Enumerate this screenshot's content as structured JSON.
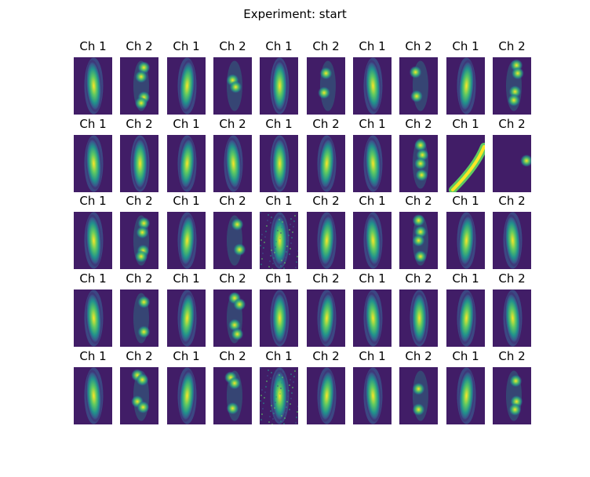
{
  "figure": {
    "title": "Experiment: start"
  },
  "colormap": [
    "#440154",
    "#3b528b",
    "#21918c",
    "#5ec962",
    "#fde725"
  ],
  "rows": [
    {
      "labels": [
        "Ch 1",
        "Ch 2",
        "Ch 1",
        "Ch 2",
        "Ch 1",
        "Ch 2",
        "Ch 1",
        "Ch 2",
        "Ch 1",
        "Ch 2"
      ],
      "cells": [
        {
          "shape": "rod",
          "blobs": []
        },
        {
          "shape": "spots",
          "blobs": [
            [
              0.62,
              0.18
            ],
            [
              0.55,
              0.34
            ],
            [
              0.62,
              0.7
            ],
            [
              0.55,
              0.8
            ]
          ]
        },
        {
          "shape": "rod",
          "blobs": []
        },
        {
          "shape": "spots",
          "blobs": [
            [
              0.5,
              0.4
            ],
            [
              0.58,
              0.52
            ]
          ]
        },
        {
          "shape": "rod",
          "blobs": []
        },
        {
          "shape": "spots",
          "blobs": [
            [
              0.5,
              0.28
            ],
            [
              0.45,
              0.62
            ]
          ]
        },
        {
          "shape": "rod",
          "blobs": []
        },
        {
          "shape": "spots",
          "blobs": [
            [
              0.42,
              0.26
            ],
            [
              0.45,
              0.68
            ]
          ]
        },
        {
          "shape": "rod",
          "blobs": []
        },
        {
          "shape": "spots",
          "blobs": [
            [
              0.62,
              0.14
            ],
            [
              0.65,
              0.28
            ],
            [
              0.58,
              0.6
            ],
            [
              0.55,
              0.75
            ]
          ]
        }
      ]
    },
    {
      "labels": [
        "Ch 1",
        "Ch 2",
        "Ch 1",
        "Ch 2",
        "Ch 1",
        "Ch 2",
        "Ch 1",
        "Ch 2",
        "Ch 1",
        "Ch 2"
      ],
      "cells": [
        {
          "shape": "rod",
          "blobs": []
        },
        {
          "shape": "rod",
          "blobs": []
        },
        {
          "shape": "rod",
          "blobs": []
        },
        {
          "shape": "rod",
          "blobs": []
        },
        {
          "shape": "rod",
          "blobs": []
        },
        {
          "shape": "rod",
          "blobs": []
        },
        {
          "shape": "rod",
          "blobs": []
        },
        {
          "shape": "spots",
          "blobs": [
            [
              0.55,
              0.18
            ],
            [
              0.6,
              0.35
            ],
            [
              0.55,
              0.5
            ],
            [
              0.58,
              0.7
            ]
          ]
        },
        {
          "shape": "arc",
          "blobs": []
        },
        {
          "shape": "edge",
          "blobs": [
            [
              0.88,
              0.45
            ]
          ]
        }
      ]
    },
    {
      "labels": [
        "Ch 1",
        "Ch 2",
        "Ch 1",
        "Ch 2",
        "Ch 1",
        "Ch 2",
        "Ch 1",
        "Ch 2",
        "Ch 1",
        "Ch 2"
      ],
      "cells": [
        {
          "shape": "rod",
          "blobs": []
        },
        {
          "shape": "spots",
          "blobs": [
            [
              0.62,
              0.2
            ],
            [
              0.58,
              0.36
            ],
            [
              0.6,
              0.68
            ],
            [
              0.55,
              0.78
            ]
          ]
        },
        {
          "shape": "rod",
          "blobs": []
        },
        {
          "shape": "spots",
          "blobs": [
            [
              0.62,
              0.22
            ],
            [
              0.68,
              0.66
            ]
          ]
        },
        {
          "shape": "noisy",
          "blobs": []
        },
        {
          "shape": "rod",
          "blobs": []
        },
        {
          "shape": "rod",
          "blobs": []
        },
        {
          "shape": "spots",
          "blobs": [
            [
              0.5,
              0.15
            ],
            [
              0.55,
              0.35
            ],
            [
              0.5,
              0.5
            ],
            [
              0.55,
              0.78
            ]
          ]
        },
        {
          "shape": "rod",
          "blobs": []
        },
        {
          "shape": "rod",
          "blobs": []
        }
      ]
    },
    {
      "labels": [
        "Ch 1",
        "Ch 2",
        "Ch 1",
        "Ch 2",
        "Ch 1",
        "Ch 2",
        "Ch 1",
        "Ch 2",
        "Ch 1",
        "Ch 2"
      ],
      "cells": [
        {
          "shape": "rod",
          "blobs": []
        },
        {
          "shape": "spots",
          "blobs": [
            [
              0.62,
              0.22
            ],
            [
              0.62,
              0.74
            ]
          ]
        },
        {
          "shape": "rod",
          "blobs": []
        },
        {
          "shape": "spots",
          "blobs": [
            [
              0.55,
              0.15
            ],
            [
              0.68,
              0.26
            ],
            [
              0.55,
              0.62
            ],
            [
              0.62,
              0.78
            ]
          ]
        },
        {
          "shape": "rod",
          "blobs": []
        },
        {
          "shape": "rod",
          "blobs": []
        },
        {
          "shape": "rod",
          "blobs": []
        },
        {
          "shape": "rod",
          "blobs": []
        },
        {
          "shape": "rod",
          "blobs": []
        },
        {
          "shape": "rod",
          "blobs": []
        }
      ]
    },
    {
      "labels": [
        "Ch 1",
        "Ch 2",
        "Ch 1",
        "Ch 2",
        "Ch 1",
        "Ch 2",
        "Ch 1",
        "Ch 2",
        "Ch 1",
        "Ch 2"
      ],
      "cells": [
        {
          "shape": "rod",
          "blobs": []
        },
        {
          "shape": "spots",
          "blobs": [
            [
              0.45,
              0.14
            ],
            [
              0.58,
              0.22
            ],
            [
              0.45,
              0.6
            ],
            [
              0.6,
              0.7
            ]
          ]
        },
        {
          "shape": "rod",
          "blobs": []
        },
        {
          "shape": "spots",
          "blobs": [
            [
              0.45,
              0.18
            ],
            [
              0.55,
              0.28
            ],
            [
              0.5,
              0.72
            ]
          ]
        },
        {
          "shape": "noisy",
          "blobs": []
        },
        {
          "shape": "rod",
          "blobs": []
        },
        {
          "shape": "rod",
          "blobs": []
        },
        {
          "shape": "spots",
          "blobs": [
            [
              0.5,
              0.38
            ],
            [
              0.5,
              0.74
            ]
          ]
        },
        {
          "shape": "rod",
          "blobs": []
        },
        {
          "shape": "spots",
          "blobs": [
            [
              0.6,
              0.24
            ],
            [
              0.62,
              0.6
            ],
            [
              0.58,
              0.74
            ]
          ]
        }
      ]
    }
  ]
}
